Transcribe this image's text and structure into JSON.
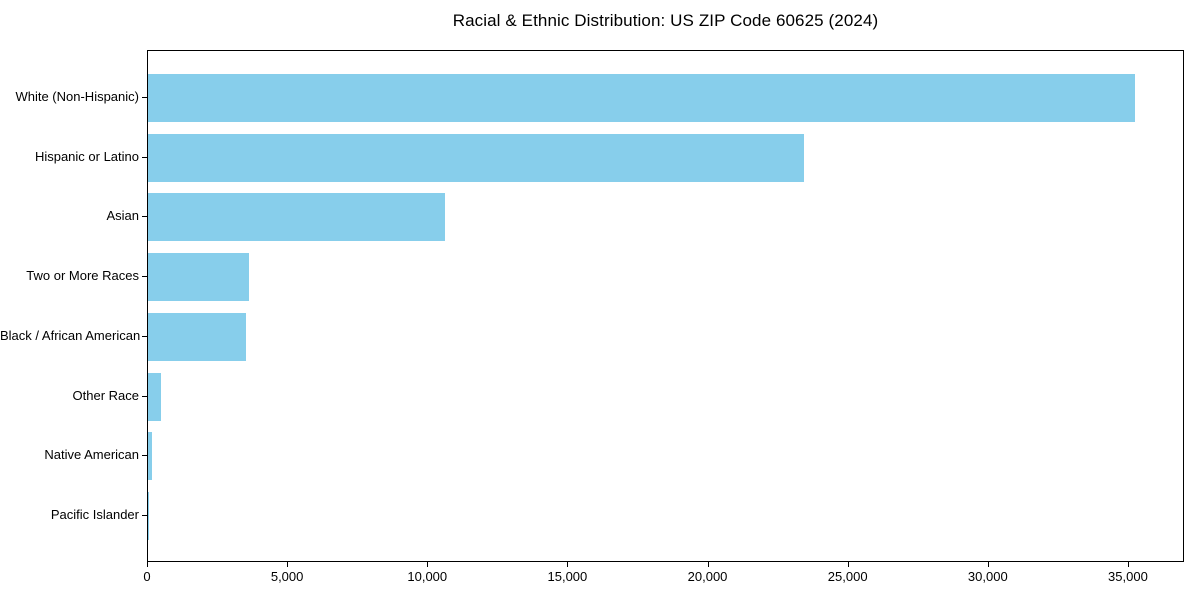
{
  "chart_data": {
    "type": "bar",
    "orientation": "horizontal",
    "title": "Racial & Ethnic Distribution: US ZIP Code 60625 (2024)",
    "categories": [
      "White (Non-Hispanic)",
      "Hispanic or Latino",
      "Asian",
      "Two or More Races",
      "Black / African American",
      "Other Race",
      "Native American",
      "Pacific Islander"
    ],
    "values": [
      35200,
      23400,
      10600,
      3600,
      3500,
      450,
      140,
      30
    ],
    "xlabel": "",
    "ylabel": "",
    "xlim": [
      0,
      37000
    ],
    "x_ticks": [
      0,
      5000,
      10000,
      15000,
      20000,
      25000,
      30000,
      35000
    ],
    "x_tick_labels": [
      "0",
      "5,000",
      "10,000",
      "15,000",
      "20,000",
      "25,000",
      "30,000",
      "35,000"
    ],
    "bar_color": "#87CEEB",
    "axis_color": "#000000",
    "background_color": "#ffffff",
    "grid": false,
    "legend": null
  }
}
